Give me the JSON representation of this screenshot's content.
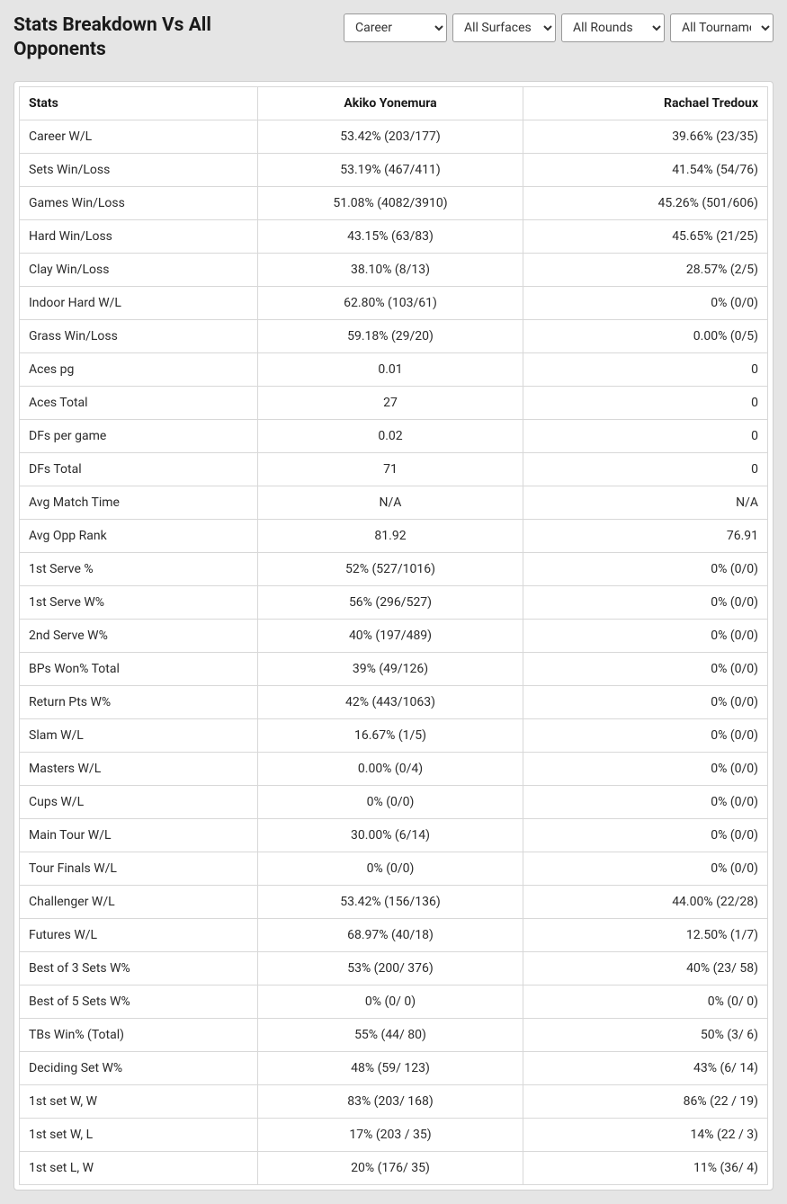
{
  "header": {
    "title": "Stats Breakdown Vs All Opponents"
  },
  "filters": {
    "career": "Career",
    "surface": "All Surfaces",
    "rounds": "All Rounds",
    "tournament": "All Tournaments"
  },
  "table": {
    "columns": {
      "stats": "Stats",
      "player1": "Akiko Yonemura",
      "player2": "Rachael Tredoux"
    },
    "rows": [
      {
        "stat": "Career W/L",
        "p1": "53.42% (203/177)",
        "p2": "39.66% (23/35)"
      },
      {
        "stat": "Sets Win/Loss",
        "p1": "53.19% (467/411)",
        "p2": "41.54% (54/76)"
      },
      {
        "stat": "Games Win/Loss",
        "p1": "51.08% (4082/3910)",
        "p2": "45.26% (501/606)"
      },
      {
        "stat": "Hard Win/Loss",
        "p1": "43.15% (63/83)",
        "p2": "45.65% (21/25)"
      },
      {
        "stat": "Clay Win/Loss",
        "p1": "38.10% (8/13)",
        "p2": "28.57% (2/5)"
      },
      {
        "stat": "Indoor Hard W/L",
        "p1": "62.80% (103/61)",
        "p2": "0% (0/0)"
      },
      {
        "stat": "Grass Win/Loss",
        "p1": "59.18% (29/20)",
        "p2": "0.00% (0/5)"
      },
      {
        "stat": "Aces pg",
        "p1": "0.01",
        "p2": "0"
      },
      {
        "stat": "Aces Total",
        "p1": "27",
        "p2": "0"
      },
      {
        "stat": "DFs per game",
        "p1": "0.02",
        "p2": "0"
      },
      {
        "stat": "DFs Total",
        "p1": "71",
        "p2": "0"
      },
      {
        "stat": "Avg Match Time",
        "p1": "N/A",
        "p2": "N/A"
      },
      {
        "stat": "Avg Opp Rank",
        "p1": "81.92",
        "p2": "76.91"
      },
      {
        "stat": "1st Serve %",
        "p1": "52% (527/1016)",
        "p2": "0% (0/0)"
      },
      {
        "stat": "1st Serve W%",
        "p1": "56% (296/527)",
        "p2": "0% (0/0)"
      },
      {
        "stat": "2nd Serve W%",
        "p1": "40% (197/489)",
        "p2": "0% (0/0)"
      },
      {
        "stat": "BPs Won% Total",
        "p1": "39% (49/126)",
        "p2": "0% (0/0)"
      },
      {
        "stat": "Return Pts W%",
        "p1": "42% (443/1063)",
        "p2": "0% (0/0)"
      },
      {
        "stat": "Slam W/L",
        "p1": "16.67% (1/5)",
        "p2": "0% (0/0)"
      },
      {
        "stat": "Masters W/L",
        "p1": "0.00% (0/4)",
        "p2": "0% (0/0)"
      },
      {
        "stat": "Cups W/L",
        "p1": "0% (0/0)",
        "p2": "0% (0/0)"
      },
      {
        "stat": "Main Tour W/L",
        "p1": "30.00% (6/14)",
        "p2": "0% (0/0)"
      },
      {
        "stat": "Tour Finals W/L",
        "p1": "0% (0/0)",
        "p2": "0% (0/0)"
      },
      {
        "stat": "Challenger W/L",
        "p1": "53.42% (156/136)",
        "p2": "44.00% (22/28)"
      },
      {
        "stat": "Futures W/L",
        "p1": "68.97% (40/18)",
        "p2": "12.50% (1/7)"
      },
      {
        "stat": "Best of 3 Sets W%",
        "p1": "53% (200/ 376)",
        "p2": "40% (23/ 58)"
      },
      {
        "stat": "Best of 5 Sets W%",
        "p1": "0% (0/ 0)",
        "p2": "0% (0/ 0)"
      },
      {
        "stat": "TBs Win% (Total)",
        "p1": "55% (44/ 80)",
        "p2": "50% (3/ 6)"
      },
      {
        "stat": "Deciding Set W%",
        "p1": "48% (59/ 123)",
        "p2": "43% (6/ 14)"
      },
      {
        "stat": "1st set W, W",
        "p1": "83% (203/ 168)",
        "p2": "86% (22 / 19)"
      },
      {
        "stat": "1st set W, L",
        "p1": "17% (203 / 35)",
        "p2": "14% (22 / 3)"
      },
      {
        "stat": "1st set L, W",
        "p1": "20% (176/ 35)",
        "p2": "11% (36/ 4)"
      }
    ]
  }
}
